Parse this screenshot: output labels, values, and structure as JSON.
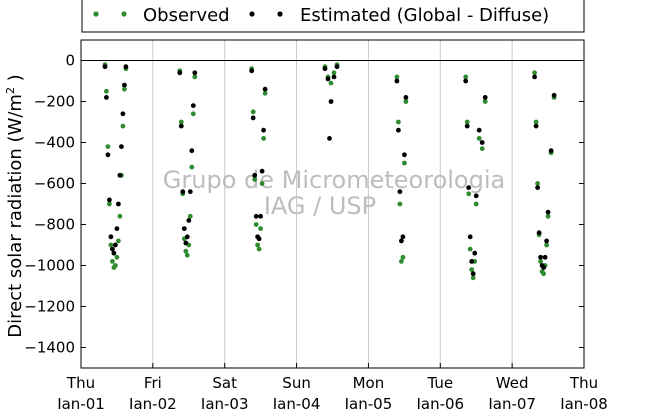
{
  "chart_data": {
    "type": "scatter",
    "title": "",
    "xlabel": "",
    "ylabel": "Direct solar radiation (W/m²)",
    "ylabel_parts": {
      "main": "Direct solar radiation (W/m",
      "sup": "2",
      "tail": " )"
    },
    "ylim": [
      -1500,
      100
    ],
    "xlim": [
      "2015-01-01",
      "2015-01-08"
    ],
    "yticks": [
      0,
      -200,
      -400,
      -600,
      -800,
      -1000,
      -1200,
      -1400
    ],
    "ytick_labels": [
      "0",
      "−200",
      "−400",
      "−600",
      "−800",
      "−1000",
      "−1200",
      "−1400"
    ],
    "xticks": [
      {
        "day": "Thu",
        "date": "Jan-01"
      },
      {
        "day": "Fri",
        "date": "Jan-02"
      },
      {
        "day": "Sat",
        "date": "Jan-03"
      },
      {
        "day": "Sun",
        "date": "Jan-04"
      },
      {
        "day": "Mon",
        "date": "Jan-05"
      },
      {
        "day": "Tue",
        "date": "Jan-06"
      },
      {
        "day": "Wed",
        "date": "Jan-07"
      },
      {
        "day": "Thu",
        "date": "Jan-08"
      }
    ],
    "grid": "vertical",
    "legend_placement": "top-center",
    "watermark": [
      "Grupo de Micrometeorologia",
      "IAG / USP"
    ],
    "colors": {
      "observed": "#2e8b2e",
      "estimated": "#000000",
      "grid": "#c8c8c8"
    },
    "series": [
      {
        "name": "Observed",
        "color": "#2e8b2e",
        "points": [
          [
            "2015-01-01 08:00",
            -20
          ],
          [
            "2015-01-01 08:30",
            -150
          ],
          [
            "2015-01-01 09:00",
            -420
          ],
          [
            "2015-01-01 09:30",
            -700
          ],
          [
            "2015-01-01 10:00",
            -900
          ],
          [
            "2015-01-01 10:30",
            -980
          ],
          [
            "2015-01-01 11:00",
            -1010
          ],
          [
            "2015-01-01 11:30",
            -1000
          ],
          [
            "2015-01-01 12:00",
            -960
          ],
          [
            "2015-01-01 12:30",
            -880
          ],
          [
            "2015-01-01 13:00",
            -760
          ],
          [
            "2015-01-01 13:30",
            -560
          ],
          [
            "2015-01-01 14:00",
            -320
          ],
          [
            "2015-01-01 14:30",
            -140
          ],
          [
            "2015-01-01 15:00",
            -40
          ],
          [
            "2015-01-02 09:00",
            -50
          ],
          [
            "2015-01-02 09:30",
            -300
          ],
          [
            "2015-01-02 10:00",
            -650
          ],
          [
            "2015-01-02 10:30",
            -870
          ],
          [
            "2015-01-02 11:00",
            -930
          ],
          [
            "2015-01-02 11:30",
            -950
          ],
          [
            "2015-01-02 12:00",
            -900
          ],
          [
            "2015-01-02 12:30",
            -760
          ],
          [
            "2015-01-02 13:00",
            -520
          ],
          [
            "2015-01-02 13:30",
            -260
          ],
          [
            "2015-01-02 14:00",
            -80
          ],
          [
            "2015-01-03 09:00",
            -40
          ],
          [
            "2015-01-03 09:30",
            -250
          ],
          [
            "2015-01-03 10:00",
            -580
          ],
          [
            "2015-01-03 10:30",
            -800
          ],
          [
            "2015-01-03 11:00",
            -900
          ],
          [
            "2015-01-03 11:30",
            -920
          ],
          [
            "2015-01-03 12:00",
            -820
          ],
          [
            "2015-01-03 12:30",
            -600
          ],
          [
            "2015-01-03 13:00",
            -380
          ],
          [
            "2015-01-03 13:30",
            -160
          ],
          [
            "2015-01-04 09:30",
            -30
          ],
          [
            "2015-01-04 10:30",
            -80
          ],
          [
            "2015-01-04 11:30",
            -110
          ],
          [
            "2015-01-04 12:30",
            -60
          ],
          [
            "2015-01-04 13:30",
            -20
          ],
          [
            "2015-01-05 09:30",
            -80
          ],
          [
            "2015-01-05 10:00",
            -300
          ],
          [
            "2015-01-05 10:30",
            -700
          ],
          [
            "2015-01-05 11:00",
            -980
          ],
          [
            "2015-01-05 11:30",
            -960
          ],
          [
            "2015-01-05 12:00",
            -500
          ],
          [
            "2015-01-05 12:30",
            -200
          ],
          [
            "2015-01-06 08:30",
            -80
          ],
          [
            "2015-01-06 09:00",
            -300
          ],
          [
            "2015-01-06 09:30",
            -650
          ],
          [
            "2015-01-06 10:00",
            -920
          ],
          [
            "2015-01-06 10:30",
            -1020
          ],
          [
            "2015-01-06 11:00",
            -1060
          ],
          [
            "2015-01-06 11:30",
            -980
          ],
          [
            "2015-01-06 12:00",
            -700
          ],
          [
            "2015-01-06 13:00",
            -380
          ],
          [
            "2015-01-06 14:00",
            -430
          ],
          [
            "2015-01-06 15:00",
            -200
          ],
          [
            "2015-01-07 07:30",
            -60
          ],
          [
            "2015-01-07 08:00",
            -300
          ],
          [
            "2015-01-07 08:30",
            -600
          ],
          [
            "2015-01-07 09:00",
            -850
          ],
          [
            "2015-01-07 09:30",
            -980
          ],
          [
            "2015-01-07 10:00",
            -1030
          ],
          [
            "2015-01-07 10:30",
            -1040
          ],
          [
            "2015-01-07 11:00",
            -1000
          ],
          [
            "2015-01-07 11:30",
            -900
          ],
          [
            "2015-01-07 12:00",
            -760
          ],
          [
            "2015-01-07 13:00",
            -450
          ],
          [
            "2015-01-07 14:00",
            -180
          ]
        ]
      },
      {
        "name": "Estimated (Global - Diffuse)",
        "color": "#000000",
        "points": [
          [
            "2015-01-01 08:00",
            -30
          ],
          [
            "2015-01-01 08:30",
            -180
          ],
          [
            "2015-01-01 09:00",
            -460
          ],
          [
            "2015-01-01 09:30",
            -680
          ],
          [
            "2015-01-01 10:00",
            -860
          ],
          [
            "2015-01-01 10:30",
            -920
          ],
          [
            "2015-01-01 11:00",
            -940
          ],
          [
            "2015-01-01 11:30",
            -900
          ],
          [
            "2015-01-01 12:00",
            -820
          ],
          [
            "2015-01-01 12:30",
            -700
          ],
          [
            "2015-01-01 13:00",
            -560
          ],
          [
            "2015-01-01 13:30",
            -420
          ],
          [
            "2015-01-01 14:00",
            -260
          ],
          [
            "2015-01-01 14:30",
            -120
          ],
          [
            "2015-01-01 15:00",
            -30
          ],
          [
            "2015-01-02 09:00",
            -60
          ],
          [
            "2015-01-02 09:30",
            -320
          ],
          [
            "2015-01-02 10:00",
            -640
          ],
          [
            "2015-01-02 10:30",
            -820
          ],
          [
            "2015-01-02 11:00",
            -890
          ],
          [
            "2015-01-02 11:30",
            -860
          ],
          [
            "2015-01-02 12:00",
            -780
          ],
          [
            "2015-01-02 12:30",
            -640
          ],
          [
            "2015-01-02 13:00",
            -440
          ],
          [
            "2015-01-02 13:30",
            -220
          ],
          [
            "2015-01-02 14:00",
            -60
          ],
          [
            "2015-01-03 09:00",
            -50
          ],
          [
            "2015-01-03 09:30",
            -280
          ],
          [
            "2015-01-03 10:00",
            -560
          ],
          [
            "2015-01-03 10:30",
            -760
          ],
          [
            "2015-01-03 11:00",
            -860
          ],
          [
            "2015-01-03 11:30",
            -870
          ],
          [
            "2015-01-03 12:00",
            -760
          ],
          [
            "2015-01-03 12:30",
            -540
          ],
          [
            "2015-01-03 13:00",
            -340
          ],
          [
            "2015-01-03 13:30",
            -140
          ],
          [
            "2015-01-04 09:30",
            -40
          ],
          [
            "2015-01-04 10:30",
            -90
          ],
          [
            "2015-01-04 11:00",
            -380
          ],
          [
            "2015-01-04 11:30",
            -200
          ],
          [
            "2015-01-04 12:30",
            -80
          ],
          [
            "2015-01-04 13:30",
            -30
          ],
          [
            "2015-01-05 09:30",
            -100
          ],
          [
            "2015-01-05 10:00",
            -340
          ],
          [
            "2015-01-05 10:30",
            -640
          ],
          [
            "2015-01-05 11:00",
            -880
          ],
          [
            "2015-01-05 11:30",
            -860
          ],
          [
            "2015-01-05 12:00",
            -460
          ],
          [
            "2015-01-05 12:30",
            -180
          ],
          [
            "2015-01-06 08:30",
            -100
          ],
          [
            "2015-01-06 09:00",
            -320
          ],
          [
            "2015-01-06 09:30",
            -620
          ],
          [
            "2015-01-06 10:00",
            -860
          ],
          [
            "2015-01-06 10:30",
            -980
          ],
          [
            "2015-01-06 11:00",
            -1040
          ],
          [
            "2015-01-06 11:30",
            -940
          ],
          [
            "2015-01-06 12:00",
            -660
          ],
          [
            "2015-01-06 13:00",
            -340
          ],
          [
            "2015-01-06 14:00",
            -400
          ],
          [
            "2015-01-06 15:00",
            -180
          ],
          [
            "2015-01-07 07:30",
            -80
          ],
          [
            "2015-01-07 08:00",
            -320
          ],
          [
            "2015-01-07 08:30",
            -620
          ],
          [
            "2015-01-07 09:00",
            -840
          ],
          [
            "2015-01-07 09:30",
            -960
          ],
          [
            "2015-01-07 10:00",
            -1000
          ],
          [
            "2015-01-07 10:30",
            -1010
          ],
          [
            "2015-01-07 11:00",
            -960
          ],
          [
            "2015-01-07 11:30",
            -880
          ],
          [
            "2015-01-07 12:00",
            -740
          ],
          [
            "2015-01-07 13:00",
            -440
          ],
          [
            "2015-01-07 14:00",
            -170
          ]
        ]
      }
    ]
  }
}
